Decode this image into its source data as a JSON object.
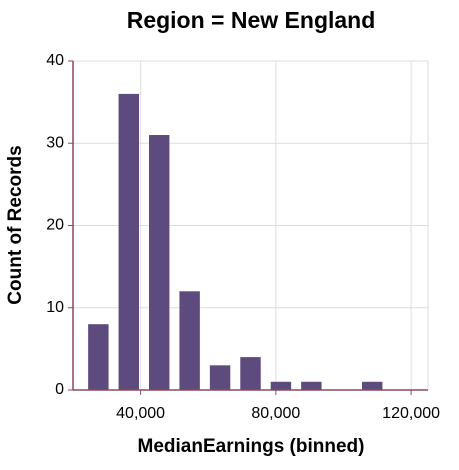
{
  "chart_data": {
    "type": "histogram",
    "title": "Region = New England",
    "x_label": "MedianEarnings (binned)",
    "y_label": "Count of Records",
    "bins": [
      23000,
      32000,
      41000,
      50000,
      59000,
      68000,
      77000,
      86000,
      95000,
      104000,
      113000
    ],
    "values": [
      8,
      36,
      31,
      12,
      3,
      4,
      1,
      1,
      0,
      1
    ],
    "color": "#5e4b7d",
    "xlim": [
      20000,
      125000
    ],
    "xticks": [
      {
        "value": 40000,
        "label": "40,000"
      },
      {
        "value": 80000,
        "label": "80,000"
      },
      {
        "value": 120000,
        "label": "120,000"
      }
    ],
    "ylim": [
      0,
      40
    ],
    "yticks": [
      0,
      10,
      20,
      30,
      40
    ],
    "grid": true
  }
}
